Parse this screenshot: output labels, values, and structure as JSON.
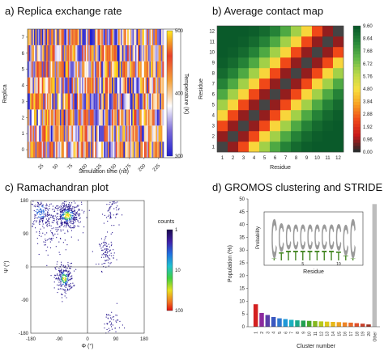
{
  "chart_data": [
    {
      "type": "heatmap",
      "title": "a) Replica exchange rate",
      "xlabel": "Simulation time (ns)",
      "ylabel": "Replica",
      "xticks": [
        "25",
        "50",
        "75",
        "100",
        "125",
        "150",
        "175",
        "200",
        "225"
      ],
      "xlim": [
        0,
        235
      ],
      "yticks": [
        "0",
        "1",
        "2",
        "3",
        "4",
        "5",
        "6",
        "7"
      ],
      "ylim": [
        -0.5,
        7.5
      ],
      "colorbar": {
        "label": "Temperature (K)",
        "ticks": [
          "300",
          "400",
          "500"
        ],
        "min": 300,
        "max": 500,
        "colors": [
          "#2020d0",
          "#7a6ad8",
          "#ffffff",
          "#f5a23a",
          "#e8402a",
          "#ffea20"
        ]
      },
      "note_values": "Each replica row is a dense sequence of thin vertical stripes colored by temperature (300–500 K)"
    },
    {
      "type": "heatmap",
      "title": "b) Average contact map",
      "xlabel": "Residue",
      "ylabel": "Residue",
      "residues": [
        1,
        2,
        3,
        4,
        5,
        6,
        7,
        8,
        9,
        10,
        11,
        12
      ],
      "colorbar": {
        "ticks": [
          "0.00",
          "0.96",
          "1.92",
          "2.88",
          "3.84",
          "4.80",
          "5.76",
          "6.72",
          "7.68",
          "8.64",
          "9.60"
        ],
        "min": 0,
        "max": 9.6
      },
      "diagonal_color": "#444444",
      "by_offset": {
        "1": 0.8,
        "2": 2.4,
        "3": 4.6,
        "4": 6.3,
        "5": 7.6,
        "6": 8.6,
        "7": 9.2,
        "8": 9.5,
        "9": 9.6,
        "10": 9.6,
        "11": 9.6
      }
    },
    {
      "type": "scatter",
      "title": "c) Ramachandran plot",
      "xlabel": "Φ (°)",
      "ylabel": "Ψ (°)",
      "xlim": [
        -180,
        180
      ],
      "ylim": [
        -180,
        180
      ],
      "xticks": [
        "-180",
        "-90",
        "0",
        "90",
        "180"
      ],
      "yticks": [
        "-180",
        "-90",
        "0",
        "90",
        "180"
      ],
      "colorbar": {
        "label": "counts",
        "ticks": [
          "1",
          "10",
          "100"
        ],
        "scale": "log"
      },
      "clusters": [
        {
          "phi": -65,
          "psi": 140,
          "sd": [
            22,
            18
          ],
          "n": 420
        },
        {
          "phi": -150,
          "psi": 150,
          "sd": [
            18,
            20
          ],
          "n": 160
        },
        {
          "phi": -75,
          "psi": -30,
          "sd": [
            14,
            20
          ],
          "n": 260
        },
        {
          "phi": 60,
          "psi": 40,
          "sd": [
            12,
            18
          ],
          "n": 90
        },
        {
          "phi": 75,
          "psi": 150,
          "sd": [
            12,
            25
          ],
          "n": 60
        },
        {
          "phi": 75,
          "psi": -150,
          "sd": [
            15,
            20
          ],
          "n": 50
        },
        {
          "phi": -120,
          "psi": 90,
          "sd": [
            30,
            40
          ],
          "n": 100
        }
      ]
    },
    {
      "type": "bar",
      "title": "d) GROMOS clustering and STRIDE",
      "xlabel": "Cluster number",
      "ylabel": "Population (%)",
      "ylim": [
        0,
        50
      ],
      "yticks": [
        "0",
        "5",
        "10",
        "15",
        "20",
        "25",
        "30",
        "35",
        "40",
        "45",
        "50"
      ],
      "categories": [
        "1",
        "2",
        "3",
        "4",
        "5",
        "6",
        "7",
        "8",
        "9",
        "10",
        "11",
        "12",
        "13",
        "14",
        "15",
        "16",
        "17",
        "18",
        "19",
        "20",
        "Other"
      ],
      "values": [
        8.8,
        5.4,
        4.6,
        3.8,
        3.3,
        3.0,
        2.7,
        2.5,
        2.4,
        2.3,
        2.2,
        2.1,
        2.0,
        1.9,
        1.8,
        1.7,
        1.6,
        1.4,
        1.2,
        0.9,
        48.0
      ],
      "colors": [
        "#d42020",
        "#8c2a9e",
        "#5a3fa8",
        "#3a58c0",
        "#2f78d0",
        "#1f98d8",
        "#1ab0c0",
        "#1aa88a",
        "#22a050",
        "#4aa82a",
        "#84b820",
        "#b8c818",
        "#dcc818",
        "#e8b818",
        "#eea020",
        "#ee8426",
        "#e86a2a",
        "#e0502a",
        "#c8402a",
        "#a03020",
        "#bdbdbd"
      ],
      "inset": {
        "xlabel": "Residue",
        "ylabel": "Probability",
        "xticks": [
          "5",
          "10"
        ],
        "letters": [
          "C",
          "C",
          "C",
          "C",
          "C",
          "C",
          "C",
          "C",
          "C",
          "C",
          "C",
          "C"
        ],
        "c_heights": [
          0.95,
          0.7,
          0.6,
          0.6,
          0.6,
          0.6,
          0.6,
          0.6,
          0.6,
          0.65,
          0.75,
          0.95
        ],
        "t_heights": [
          0.05,
          0.2,
          0.25,
          0.25,
          0.25,
          0.25,
          0.25,
          0.25,
          0.25,
          0.22,
          0.12,
          0.05
        ],
        "c_color": "#9a9a9a",
        "t_color": "#4a8a2a"
      }
    }
  ]
}
